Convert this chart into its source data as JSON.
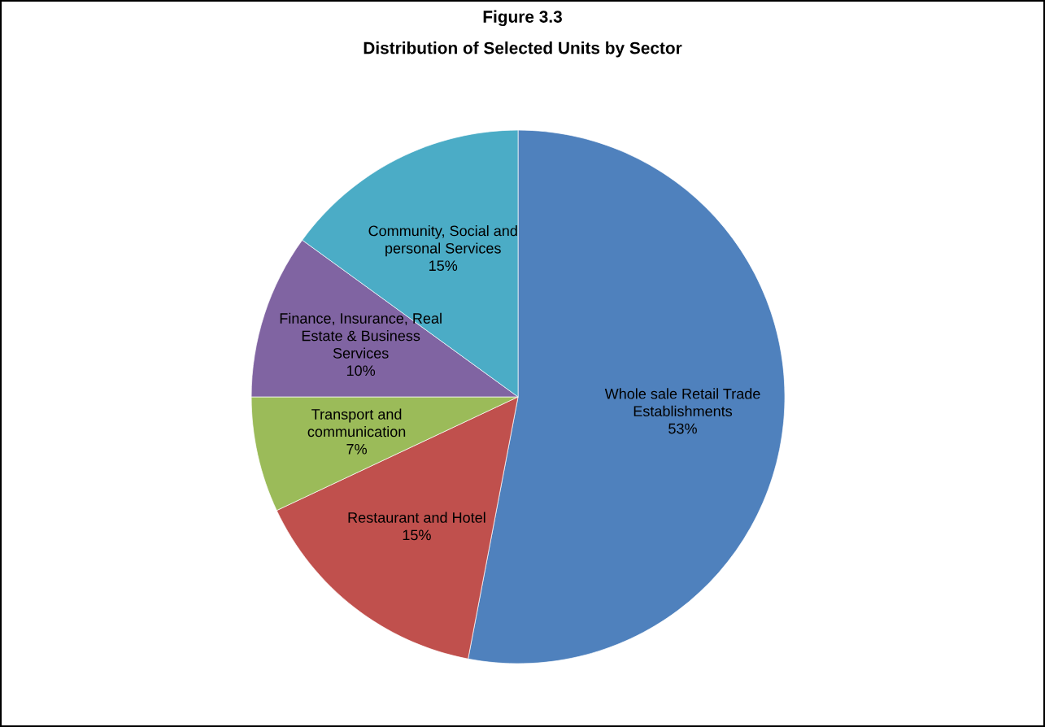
{
  "chart_data": {
    "type": "pie",
    "title": "Figure 3.3",
    "subtitle": "Distribution of Selected Units by Sector",
    "categories": [
      "Whole sale Retail Trade Establishments",
      "Restaurant and Hotel",
      "Transport and communication",
      "Finance, Insurance, Real Estate & Business Services",
      "Community, Social and personal Services"
    ],
    "values": [
      53,
      15,
      7,
      10,
      15
    ],
    "value_labels": [
      "53%",
      "15%",
      "7%",
      "10%",
      "15%"
    ],
    "colors": [
      "#4f81bd",
      "#c0504d",
      "#9bbb59",
      "#8064a2",
      "#4bacc6"
    ]
  }
}
